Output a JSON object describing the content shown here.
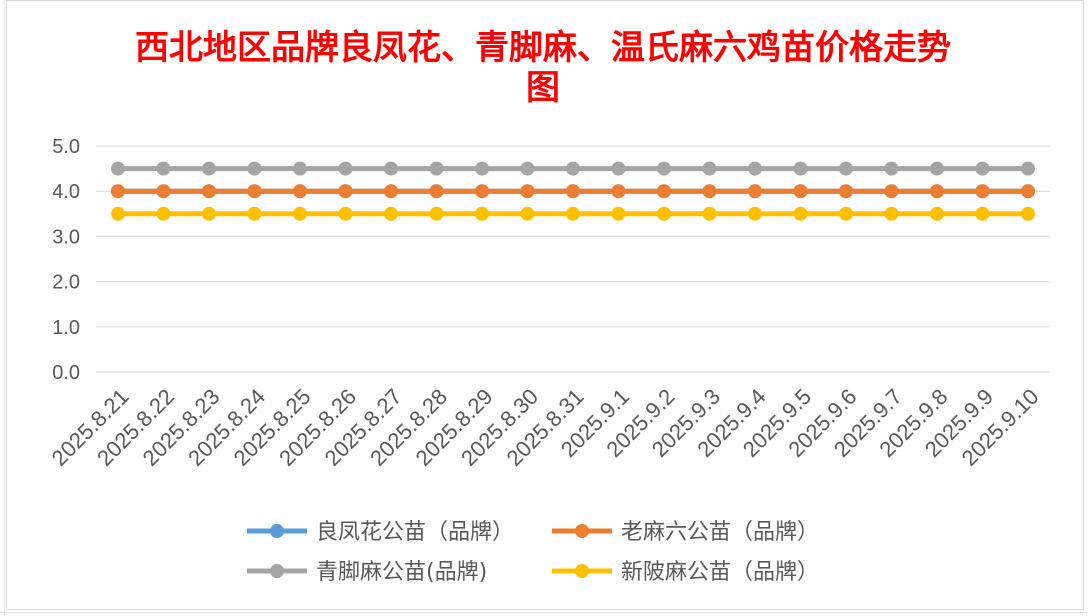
{
  "chart_data": {
    "type": "line",
    "title": "西北地区品牌良凤花、青脚麻、温氏麻六鸡苗价格走势图",
    "title_color": "#FF0000",
    "categories": [
      "2025.8.21",
      "2025.8.22",
      "2025.8.23",
      "2025.8.24",
      "2025.8.25",
      "2025.8.26",
      "2025.8.27",
      "2025.8.28",
      "2025.8.29",
      "2025.8.30",
      "2025.8.31",
      "2025.9.1",
      "2025.9.2",
      "2025.9.3",
      "2025.9.4",
      "2025.9.5",
      "2025.9.6",
      "2025.9.7",
      "2025.9.8",
      "2025.9.9",
      "2025.9.10"
    ],
    "ylim": [
      0,
      5
    ],
    "y_tick_labels": [
      "0.0",
      "1.0",
      "2.0",
      "3.0",
      "4.0",
      "5.0"
    ],
    "y_tick_values": [
      0,
      1,
      2,
      3,
      4,
      5
    ],
    "grid": true,
    "legend_position": "bottom",
    "series": [
      {
        "name": "良凤花公苗（品牌）",
        "color": "#5B9BD5",
        "values": [
          4.0,
          4.0,
          4.0,
          4.0,
          4.0,
          4.0,
          4.0,
          4.0,
          4.0,
          4.0,
          4.0,
          4.0,
          4.0,
          4.0,
          4.0,
          4.0,
          4.0,
          4.0,
          4.0,
          4.0,
          4.0
        ]
      },
      {
        "name": "老麻六公苗（品牌）",
        "color": "#ED7D31",
        "values": [
          4.0,
          4.0,
          4.0,
          4.0,
          4.0,
          4.0,
          4.0,
          4.0,
          4.0,
          4.0,
          4.0,
          4.0,
          4.0,
          4.0,
          4.0,
          4.0,
          4.0,
          4.0,
          4.0,
          4.0,
          4.0
        ]
      },
      {
        "name": "青脚麻公苗(品牌)",
        "color": "#A5A5A5",
        "values": [
          4.5,
          4.5,
          4.5,
          4.5,
          4.5,
          4.5,
          4.5,
          4.5,
          4.5,
          4.5,
          4.5,
          4.5,
          4.5,
          4.5,
          4.5,
          4.5,
          4.5,
          4.5,
          4.5,
          4.5,
          4.5
        ]
      },
      {
        "name": "新陂麻公苗（品牌）",
        "color": "#FFC000",
        "values": [
          3.5,
          3.5,
          3.5,
          3.5,
          3.5,
          3.5,
          3.5,
          3.5,
          3.5,
          3.5,
          3.5,
          3.5,
          3.5,
          3.5,
          3.5,
          3.5,
          3.5,
          3.5,
          3.5,
          3.5,
          3.5
        ]
      }
    ]
  }
}
